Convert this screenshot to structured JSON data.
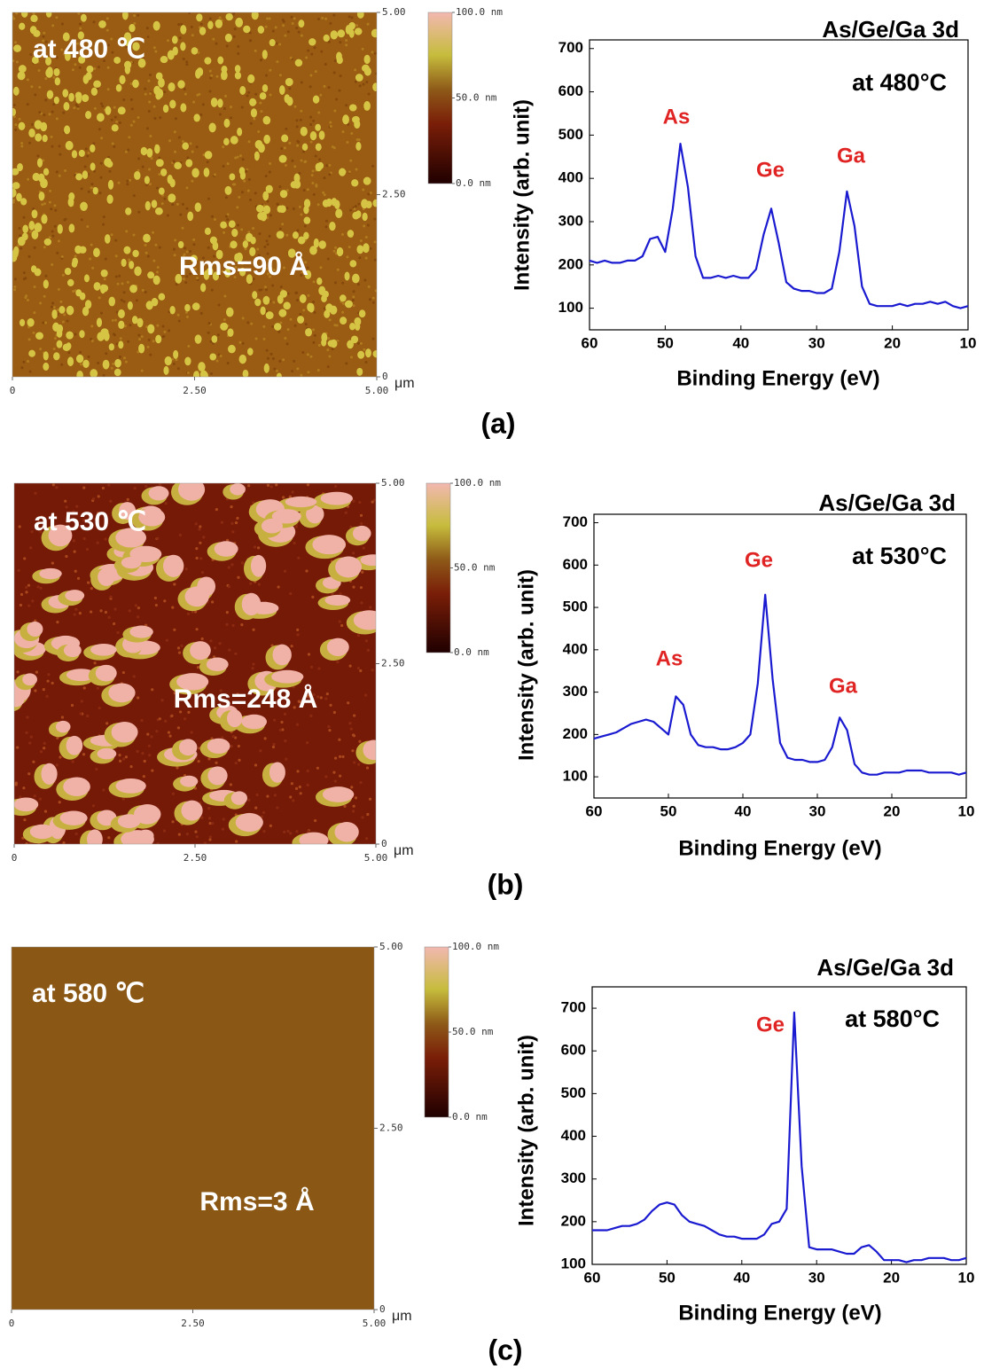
{
  "panel_labels": [
    "(a)",
    "(b)",
    "(c)"
  ],
  "chart_data": [
    {
      "type": "image",
      "annotations": [
        "at 480 ℃",
        "Rms=90 Å"
      ],
      "xlim": [
        0,
        5
      ],
      "ylim": [
        0,
        5
      ],
      "xticks": [
        0,
        {
          "value": 2.5,
          "label": "2.50"
        },
        {
          "value": 5,
          "label": "5.00"
        }
      ],
      "yticks": [
        0,
        {
          "value": 2.5,
          "label": "2.50"
        },
        {
          "value": 5,
          "label": "5.00"
        }
      ],
      "x_unit": "μm",
      "colorbar": {
        "lim": [
          0,
          100
        ],
        "ticks": [
          {
            "value": 0,
            "label": "0.0 nm"
          },
          {
            "value": 50,
            "label": "50.0 nm"
          },
          {
            "value": 100,
            "label": "100.0 nm"
          }
        ]
      }
    },
    {
      "type": "line",
      "title": "As/Ge/Ga 3d",
      "annotations": [
        "at 480°C"
      ],
      "peak_labels": [
        "As",
        "Ge",
        "Ga"
      ],
      "x_label": "Binding Energy (eV)",
      "y_label": "Intensity (arb. unit)",
      "color": "#1a1ad0",
      "xlim": [
        60,
        10
      ],
      "ylim": [
        50,
        720
      ],
      "xticks": [
        60,
        50,
        40,
        30,
        20,
        10
      ],
      "yticks": [
        100,
        200,
        300,
        400,
        500,
        600,
        700
      ],
      "x": [
        60,
        59,
        58,
        57,
        56,
        55,
        54,
        53,
        52,
        51,
        50,
        49,
        48,
        47,
        46,
        45,
        44,
        43,
        42,
        41,
        40,
        39,
        38,
        37,
        36,
        35,
        34,
        33,
        32,
        31,
        30,
        29,
        28,
        27,
        26,
        25,
        24,
        23,
        22,
        21,
        20,
        19,
        18,
        17,
        16,
        15,
        14,
        13,
        12,
        11,
        10
      ],
      "values": [
        210,
        205,
        210,
        205,
        205,
        210,
        210,
        220,
        260,
        265,
        230,
        330,
        480,
        380,
        220,
        170,
        170,
        175,
        170,
        175,
        170,
        170,
        190,
        270,
        330,
        250,
        160,
        145,
        140,
        140,
        135,
        135,
        145,
        230,
        370,
        290,
        150,
        110,
        105,
        105,
        105,
        110,
        105,
        110,
        110,
        115,
        110,
        115,
        105,
        100,
        105
      ]
    },
    {
      "type": "image",
      "annotations": [
        "at 530 ℃",
        "Rms=248 Å"
      ],
      "xlim": [
        0,
        5
      ],
      "ylim": [
        0,
        5
      ],
      "xticks": [
        0,
        {
          "value": 2.5,
          "label": "2.50"
        },
        {
          "value": 5,
          "label": "5.00"
        }
      ],
      "yticks": [
        0,
        {
          "value": 2.5,
          "label": "2.50"
        },
        {
          "value": 5,
          "label": "5.00"
        }
      ],
      "x_unit": "μm",
      "colorbar": {
        "lim": [
          0,
          100
        ],
        "ticks": [
          {
            "value": 0,
            "label": "0.0 nm"
          },
          {
            "value": 50,
            "label": "50.0 nm"
          },
          {
            "value": 100,
            "label": "100.0 nm"
          }
        ]
      }
    },
    {
      "type": "line",
      "title": "As/Ge/Ga 3d",
      "annotations": [
        "at 530°C"
      ],
      "peak_labels": [
        "As",
        "Ge",
        "Ga"
      ],
      "x_label": "Binding Energy (eV)",
      "y_label": "Intensity (arb. unit)",
      "color": "#1a1ad0",
      "xlim": [
        60,
        10
      ],
      "ylim": [
        50,
        720
      ],
      "xticks": [
        60,
        50,
        40,
        30,
        20,
        10
      ],
      "yticks": [
        100,
        200,
        300,
        400,
        500,
        600,
        700
      ],
      "x": [
        60,
        59,
        58,
        57,
        56,
        55,
        54,
        53,
        52,
        51,
        50,
        49,
        48,
        47,
        46,
        45,
        44,
        43,
        42,
        41,
        40,
        39,
        38,
        37,
        36,
        35,
        34,
        33,
        32,
        31,
        30,
        29,
        28,
        27,
        26,
        25,
        24,
        23,
        22,
        21,
        20,
        19,
        18,
        17,
        16,
        15,
        14,
        13,
        12,
        11,
        10
      ],
      "values": [
        190,
        195,
        200,
        205,
        215,
        225,
        230,
        235,
        230,
        215,
        200,
        290,
        270,
        200,
        175,
        170,
        170,
        165,
        165,
        170,
        180,
        200,
        320,
        530,
        330,
        180,
        145,
        140,
        140,
        135,
        135,
        140,
        170,
        240,
        210,
        130,
        110,
        105,
        105,
        110,
        110,
        110,
        115,
        115,
        115,
        110,
        110,
        110,
        110,
        105,
        110
      ]
    },
    {
      "type": "image",
      "annotations": [
        "at 580 ℃",
        "Rms=3 Å"
      ],
      "xlim": [
        0,
        5
      ],
      "ylim": [
        0,
        5
      ],
      "xticks": [
        0,
        {
          "value": 2.5,
          "label": "2.50"
        },
        {
          "value": 5,
          "label": "5.00"
        }
      ],
      "yticks": [
        0,
        {
          "value": 2.5,
          "label": "2.50"
        },
        {
          "value": 5,
          "label": "5.00"
        }
      ],
      "x_unit": "μm",
      "colorbar": {
        "lim": [
          0,
          100
        ],
        "ticks": [
          {
            "value": 0,
            "label": "0.0 nm"
          },
          {
            "value": 50,
            "label": "50.0 nm"
          },
          {
            "value": 100,
            "label": "100.0 nm"
          }
        ]
      }
    },
    {
      "type": "line",
      "title": "As/Ge/Ga 3d",
      "annotations": [
        "at 580°C"
      ],
      "peak_labels": [
        "Ge"
      ],
      "x_label": "Binding Energy (eV)",
      "y_label": "Intensity (arb. unit)",
      "color": "#1a1ad0",
      "xlim": [
        60,
        10
      ],
      "ylim": [
        100,
        750
      ],
      "xticks": [
        60,
        50,
        40,
        30,
        20,
        10
      ],
      "yticks": [
        100,
        200,
        300,
        400,
        500,
        600,
        700
      ],
      "x": [
        60,
        59,
        58,
        57,
        56,
        55,
        54,
        53,
        52,
        51,
        50,
        49,
        48,
        47,
        46,
        45,
        44,
        43,
        42,
        41,
        40,
        39,
        38,
        37,
        36,
        35,
        34,
        33,
        32,
        31,
        30,
        29,
        28,
        27,
        26,
        25,
        24,
        23,
        22,
        21,
        20,
        19,
        18,
        17,
        16,
        15,
        14,
        13,
        12,
        11,
        10
      ],
      "values": [
        180,
        180,
        180,
        185,
        190,
        190,
        195,
        205,
        225,
        240,
        245,
        240,
        215,
        200,
        195,
        190,
        180,
        170,
        165,
        165,
        160,
        160,
        160,
        170,
        195,
        200,
        230,
        690,
        330,
        140,
        135,
        135,
        135,
        130,
        125,
        125,
        140,
        145,
        130,
        110,
        110,
        110,
        105,
        110,
        110,
        115,
        115,
        115,
        110,
        110,
        115
      ]
    }
  ]
}
